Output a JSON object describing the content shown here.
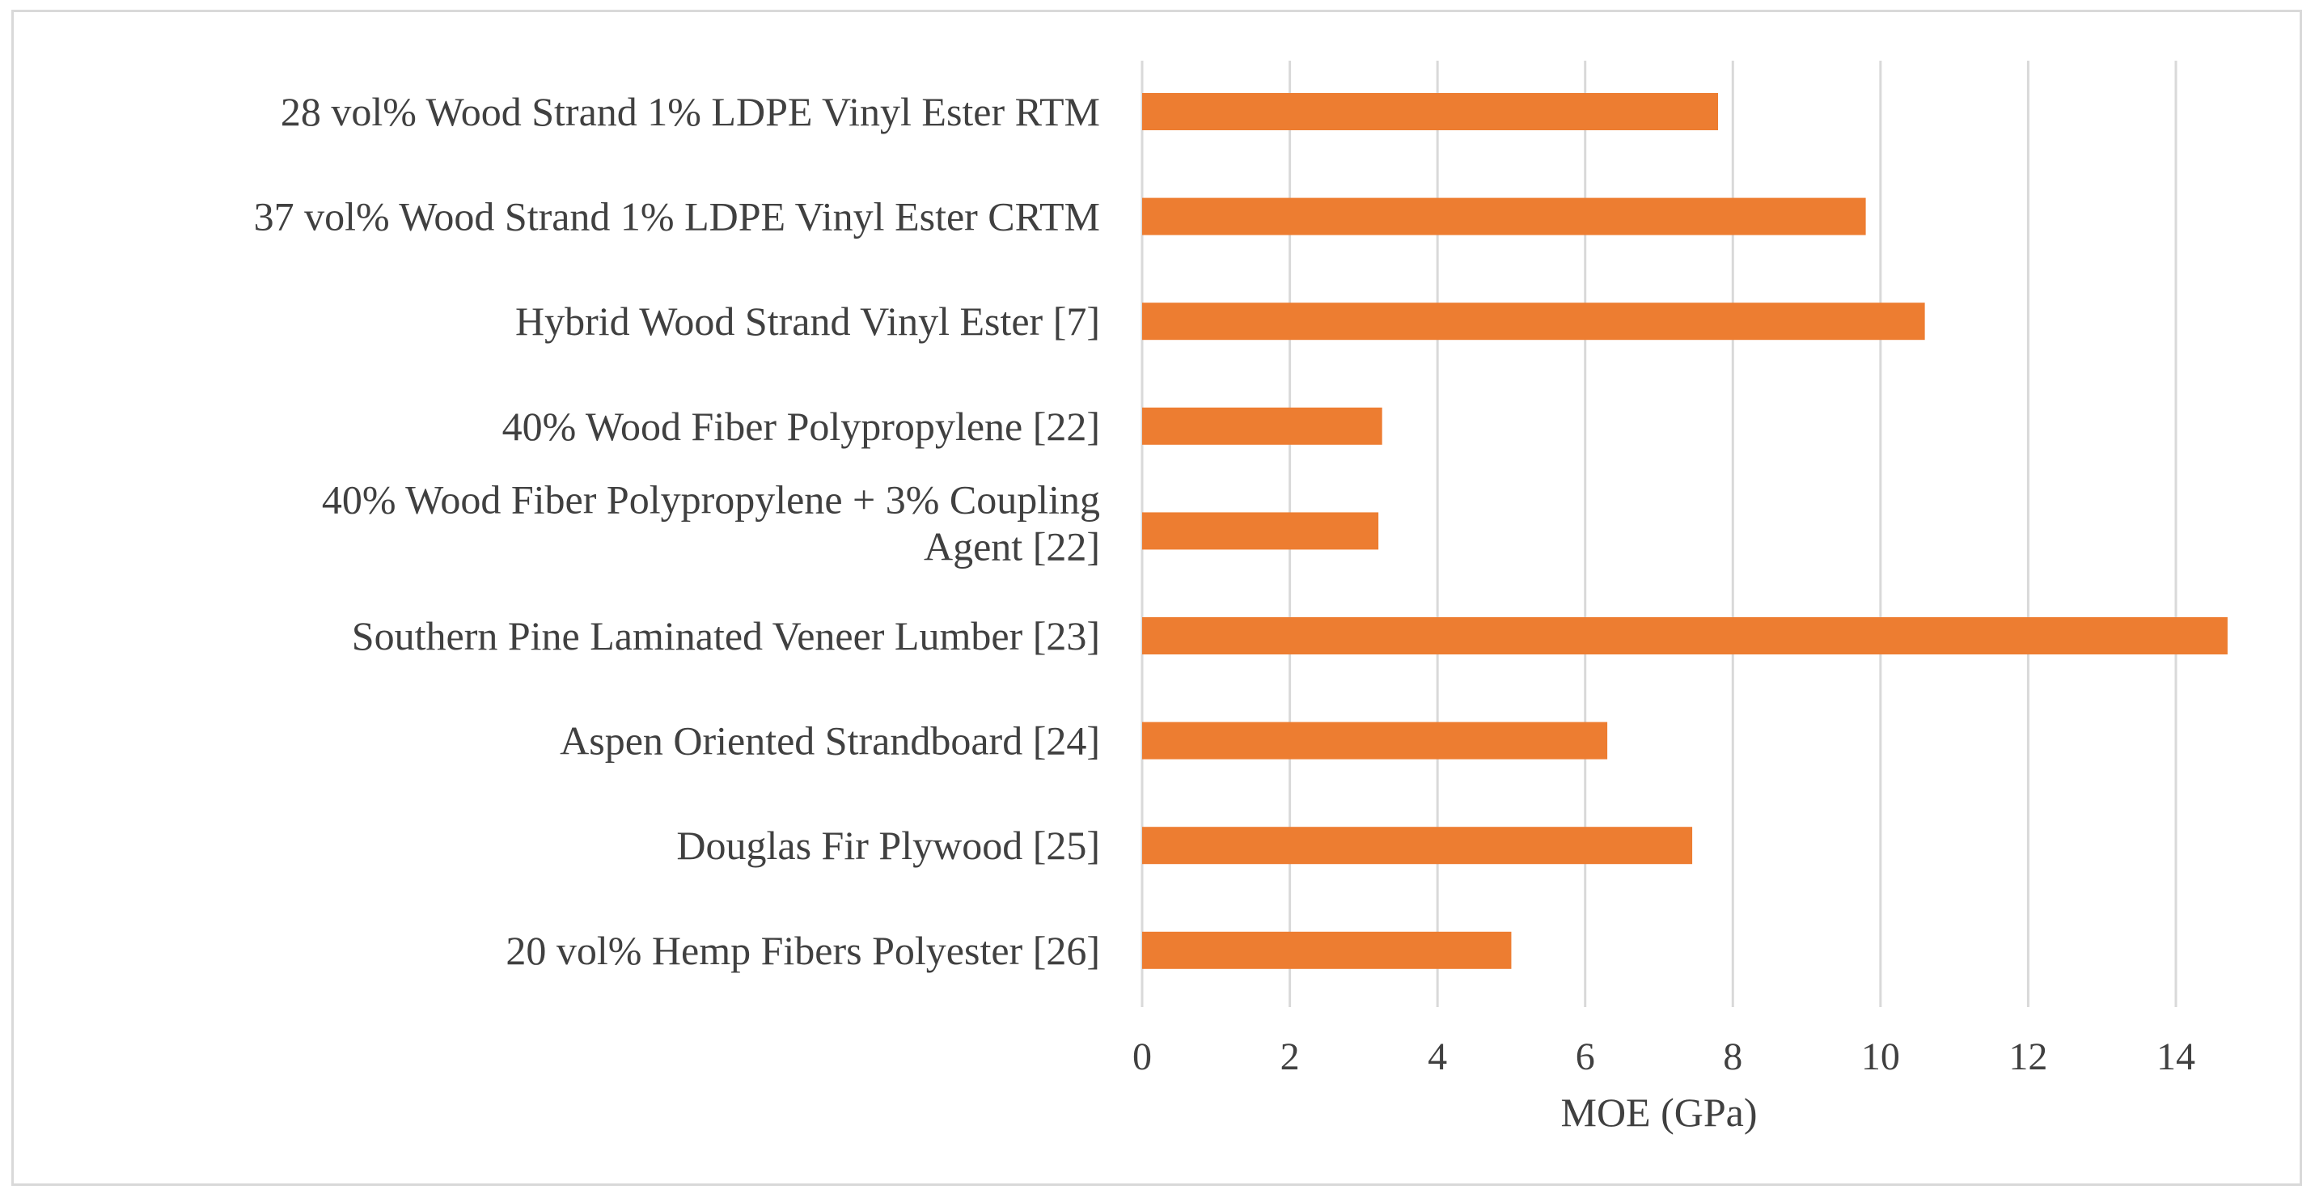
{
  "chart_data": {
    "type": "bar",
    "orientation": "horizontal",
    "title": "",
    "xlabel": "MOE (GPa)",
    "ylabel": "",
    "xlim": [
      0,
      14
    ],
    "xticks": [
      "0",
      "2",
      "4",
      "6",
      "8",
      "10",
      "12",
      "14"
    ],
    "grid": true,
    "bar_color": "#ED7D31",
    "categories": [
      [
        "28 vol% Wood Strand 1% LDPE Vinyl Ester RTM"
      ],
      [
        "37 vol% Wood Strand 1% LDPE Vinyl Ester CRTM"
      ],
      [
        "Hybrid Wood Strand Vinyl Ester [7]"
      ],
      [
        "40% Wood Fiber Polypropylene [22]"
      ],
      [
        "40% Wood Fiber Polypropylene + 3% Coupling",
        "Agent [22]"
      ],
      [
        "Southern Pine Laminated Veneer Lumber [23]"
      ],
      [
        "Aspen Oriented Strandboard [24]"
      ],
      [
        "Douglas Fir Plywood [25]"
      ],
      [
        "20 vol% Hemp Fibers Polyester [26]"
      ]
    ],
    "values": [
      7.8,
      9.8,
      10.6,
      3.25,
      3.2,
      14.7,
      6.3,
      7.45,
      5.0
    ]
  }
}
